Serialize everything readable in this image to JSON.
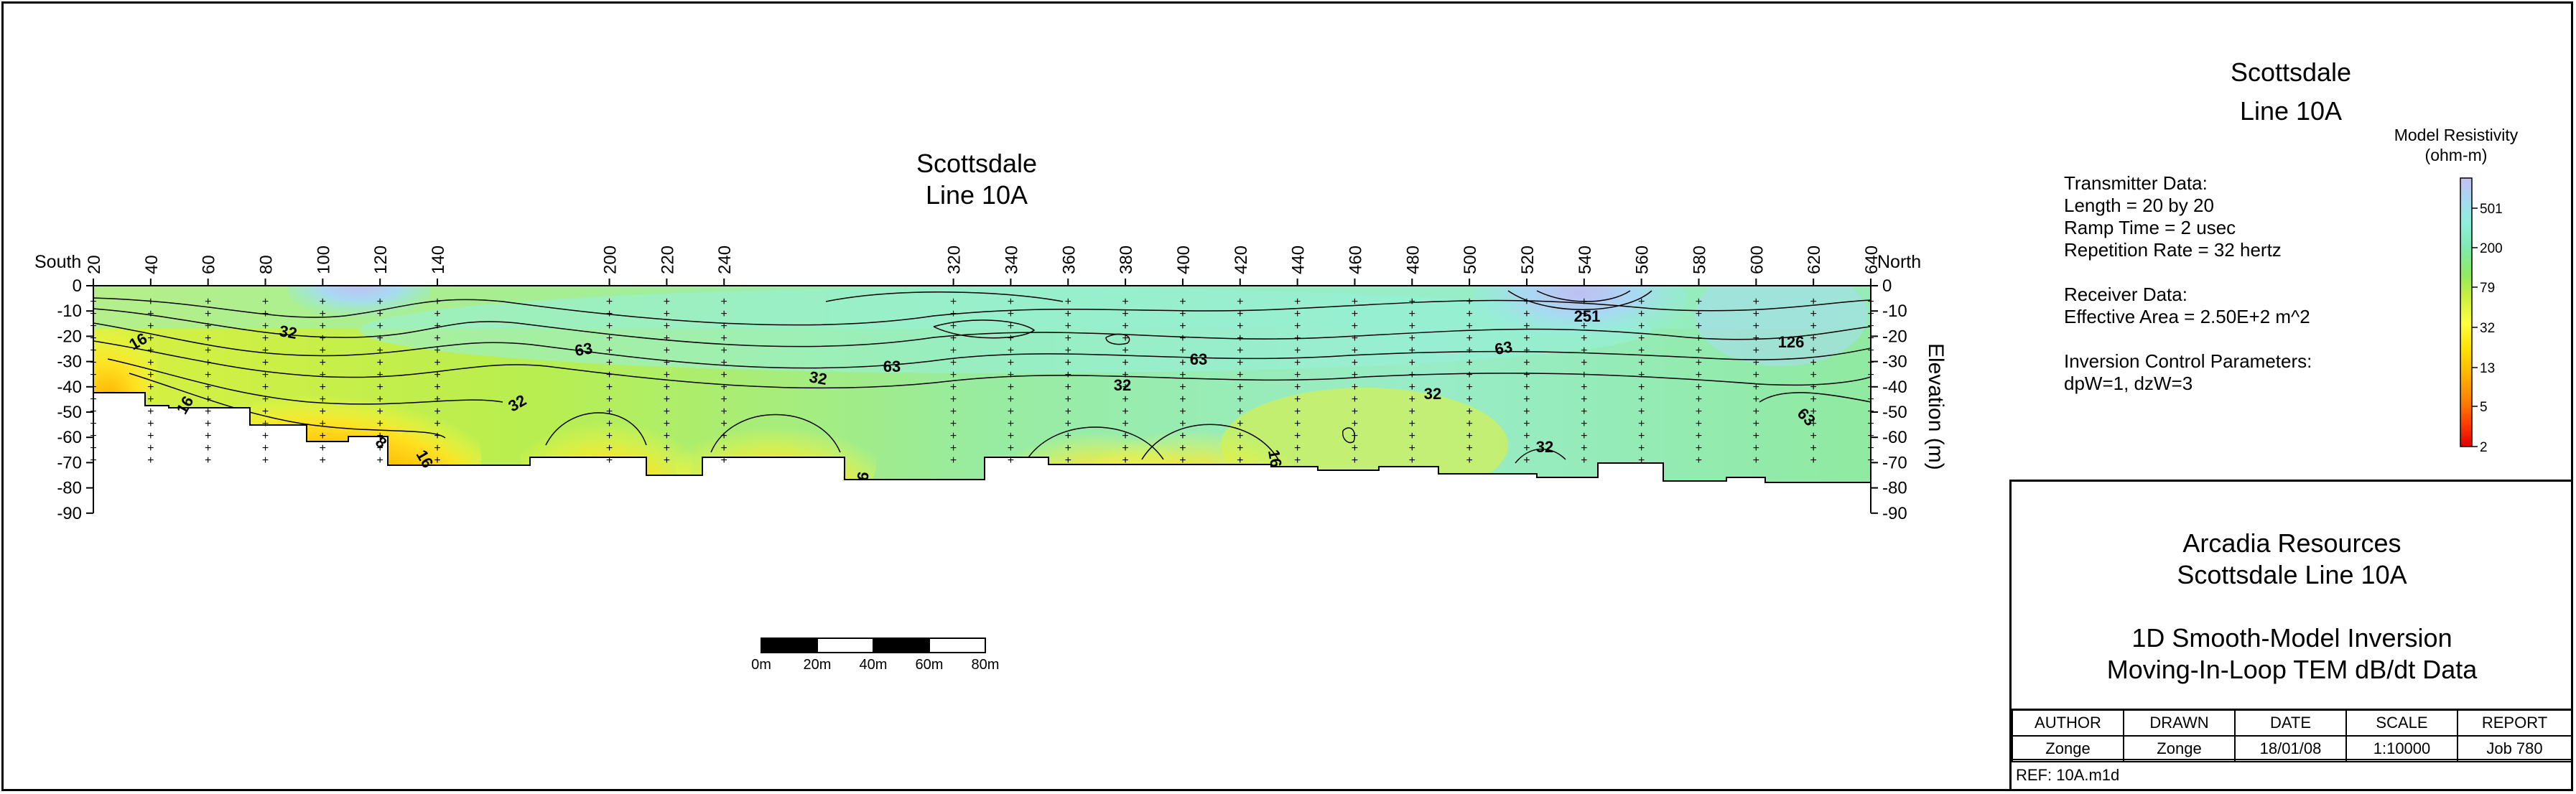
{
  "colors": {
    "background": "#ffffff",
    "contour_line": "#000000",
    "scale": [
      "#dd0000",
      "#ff5500",
      "#ff8c00",
      "#ffb000",
      "#ffd400",
      "#ffff40",
      "#e0f53a",
      "#b8ee48",
      "#90ea60",
      "#80eaa0",
      "#90f0d8",
      "#a8dcf0",
      "#b8c4f0",
      "#c8c0f4"
    ]
  },
  "right_title": {
    "line1": "Scottsdale",
    "line2": "Line 10A"
  },
  "section_title": {
    "line1": "Scottsdale",
    "line2": "Line 10A"
  },
  "legend": {
    "title_line1": "Model Resistivity",
    "title_line2": "(ohm-m)",
    "ticks": [
      "501",
      "200",
      "79",
      "32",
      "13",
      "5",
      "2"
    ]
  },
  "parameters": {
    "transmitter_header": "Transmitter Data:",
    "length": "Length = 20 by 20",
    "ramp": "Ramp Time = 2 usec",
    "rep": "Repetition Rate = 32 hertz",
    "receiver_header": "Receiver Data:",
    "area": "Effective Area = 2.50E+2 m^2",
    "inversion_header": "Inversion Control Parameters:",
    "dpw": "dpW=1, dzW=3"
  },
  "section": {
    "left_label": "South",
    "right_label": "North",
    "elevation_axis_label": "Elevation (m)",
    "stations": [
      "20",
      "40",
      "60",
      "80",
      "100",
      "120",
      "140",
      "200",
      "220",
      "240",
      "320",
      "340",
      "360",
      "380",
      "400",
      "420",
      "440",
      "460",
      "480",
      "500",
      "520",
      "540",
      "560",
      "580",
      "600",
      "620",
      "640"
    ],
    "elevation_ticks": [
      "0",
      "-10",
      "-20",
      "-30",
      "-40",
      "-50",
      "-60",
      "-70",
      "-80",
      "-90"
    ],
    "contour_labels": [
      {
        "text": "16"
      },
      {
        "text": "16"
      },
      {
        "text": "8"
      },
      {
        "text": "32"
      },
      {
        "text": "32"
      },
      {
        "text": "63"
      },
      {
        "text": "32"
      },
      {
        "text": "63"
      },
      {
        "text": "32"
      },
      {
        "text": "63"
      },
      {
        "text": "32"
      },
      {
        "text": "63"
      },
      {
        "text": "251"
      },
      {
        "text": "126"
      },
      {
        "text": "63"
      },
      {
        "text": "32"
      },
      {
        "text": "16"
      },
      {
        "text": "9"
      },
      {
        "text": "16"
      }
    ]
  },
  "scale_bar": {
    "labels": [
      "0m",
      "20m",
      "40m",
      "60m",
      "80m"
    ]
  },
  "title_block": {
    "company": "Arcadia Resources",
    "project": "Scottsdale Line 10A",
    "method1": "1D Smooth-Model Inversion",
    "method2": "Moving-In-Loop TEM dB/dt Data",
    "headers": [
      "AUTHOR",
      "DRAWN",
      "DATE",
      "SCALE",
      "REPORT"
    ],
    "values": [
      "Zonge",
      "Zonge",
      "18/01/08",
      "1:10000",
      "Job 780"
    ],
    "ref": "REF:   10A.m1d"
  }
}
